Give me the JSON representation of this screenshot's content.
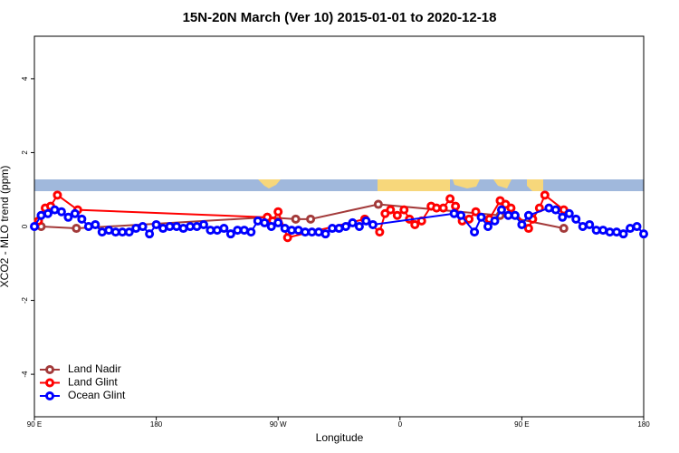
{
  "chart_data": {
    "type": "line",
    "title": "15N-20N March (Ver 10)   2015-01-01 to 2020-12-18",
    "x_label": "Longitude",
    "y_label": "XCO2 - MLO trend (ppm)",
    "xlim": [
      90,
      540
    ],
    "ylim": [
      -5.15,
      5.15
    ],
    "xticks": [
      {
        "value": 90,
        "label": "90 E"
      },
      180,
      {
        "value": 270,
        "label": "90 W"
      },
      {
        "value": 360,
        "label": "0"
      },
      {
        "value": 450,
        "label": "90 E"
      },
      {
        "value": 540,
        "label": "180"
      }
    ],
    "yticks": [
      -4,
      -2,
      0,
      2,
      4
    ],
    "legend": "bottom-left",
    "series": [
      {
        "name": "Land Nadir",
        "color": "#a33a3a",
        "x": [
          95,
          121,
          262,
          283,
          294,
          344,
          434,
          481
        ],
        "values": [
          0.0,
          -0.05,
          0.25,
          0.2,
          0.2,
          0.6,
          0.3,
          -0.05
        ]
      },
      {
        "name": "Land Glint",
        "color": "#ff0000",
        "x": [
          93,
          98,
          102,
          107,
          122,
          262,
          266,
          270,
          277,
          334,
          345,
          349,
          353,
          358,
          363,
          367,
          371,
          376,
          383,
          387,
          392,
          397,
          401,
          406,
          411,
          416,
          426,
          434,
          438,
          442,
          455,
          458,
          463,
          467,
          481
        ],
        "values": [
          0.15,
          0.5,
          0.55,
          0.85,
          0.45,
          0.25,
          0.15,
          0.4,
          -0.3,
          0.2,
          -0.15,
          0.35,
          0.45,
          0.3,
          0.45,
          0.2,
          0.05,
          0.15,
          0.55,
          0.5,
          0.5,
          0.75,
          0.55,
          0.15,
          0.2,
          0.4,
          0.2,
          0.7,
          0.6,
          0.5,
          -0.05,
          0.2,
          0.5,
          0.85,
          0.45
        ]
      },
      {
        "name": "Ocean Glint",
        "color": "#0000ff",
        "x": [
          90,
          95,
          100,
          105,
          110,
          115,
          120,
          125,
          130,
          135,
          140,
          145,
          150,
          155,
          160,
          165,
          170,
          175,
          180,
          185,
          190,
          195,
          200,
          205,
          210,
          215,
          220,
          225,
          230,
          235,
          240,
          245,
          250,
          255,
          260,
          265,
          270,
          275,
          280,
          285,
          290,
          295,
          300,
          305,
          310,
          315,
          320,
          325,
          330,
          335,
          340,
          400,
          405,
          415,
          420,
          425,
          430,
          435,
          440,
          445,
          450,
          455,
          470,
          475,
          480,
          485,
          490,
          495,
          500,
          505,
          510,
          515,
          520,
          525,
          530,
          535,
          540
        ],
        "values": [
          0.0,
          0.3,
          0.35,
          0.45,
          0.4,
          0.25,
          0.35,
          0.2,
          0.0,
          0.05,
          -0.15,
          -0.1,
          -0.15,
          -0.15,
          -0.15,
          -0.05,
          0.0,
          -0.2,
          0.05,
          -0.05,
          0.0,
          0.0,
          -0.05,
          0.0,
          0.0,
          0.05,
          -0.1,
          -0.1,
          -0.05,
          -0.2,
          -0.1,
          -0.1,
          -0.15,
          0.15,
          0.1,
          0.0,
          0.1,
          -0.05,
          -0.1,
          -0.1,
          -0.15,
          -0.15,
          -0.15,
          -0.2,
          -0.05,
          -0.05,
          0.0,
          0.1,
          0.0,
          0.15,
          0.05,
          0.35,
          0.3,
          -0.15,
          0.25,
          0.0,
          0.15,
          0.45,
          0.3,
          0.3,
          0.05,
          0.3,
          0.5,
          0.45,
          0.25,
          0.35,
          0.2,
          0.0,
          0.05,
          -0.1,
          -0.1,
          -0.15,
          -0.15,
          -0.2,
          -0.05,
          0.0,
          -0.2
        ]
      }
    ]
  }
}
